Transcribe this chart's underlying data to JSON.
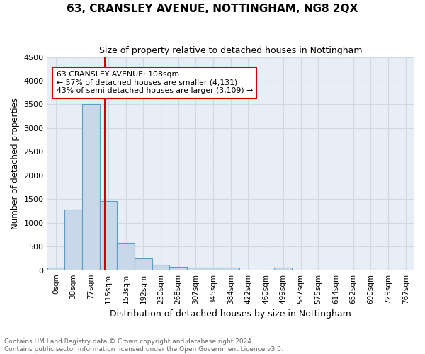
{
  "title": "63, CRANSLEY AVENUE, NOTTINGHAM, NG8 2QX",
  "subtitle": "Size of property relative to detached houses in Nottingham",
  "xlabel": "Distribution of detached houses by size in Nottingham",
  "ylabel": "Number of detached properties",
  "bar_values": [
    50,
    1280,
    3500,
    1460,
    580,
    250,
    120,
    75,
    55,
    50,
    50,
    0,
    0,
    60,
    0,
    0,
    0,
    0,
    0,
    0,
    0
  ],
  "bar_labels": [
    "0sqm",
    "38sqm",
    "77sqm",
    "115sqm",
    "153sqm",
    "192sqm",
    "230sqm",
    "268sqm",
    "307sqm",
    "345sqm",
    "384sqm",
    "422sqm",
    "460sqm",
    "499sqm",
    "537sqm",
    "575sqm",
    "614sqm",
    "652sqm",
    "690sqm",
    "729sqm",
    "767sqm"
  ],
  "bar_color": "#c8d8e8",
  "bar_edge_color": "#5a9ec8",
  "ylim": [
    0,
    4500
  ],
  "yticks": [
    0,
    500,
    1000,
    1500,
    2000,
    2500,
    3000,
    3500,
    4000,
    4500
  ],
  "vline_color": "#cc0000",
  "annotation_text": "63 CRANSLEY AVENUE: 108sqm\n← 57% of detached houses are smaller (4,131)\n43% of semi-detached houses are larger (3,109) →",
  "annotation_box_color": "#ffffff",
  "annotation_box_edge": "#cc0000",
  "grid_color": "#d0d8e8",
  "background_color": "#e8eef5",
  "footer_text": "Contains HM Land Registry data © Crown copyright and database right 2024.\nContains public sector information licensed under the Open Government Licence v3.0.",
  "figsize": [
    6.0,
    5.0
  ],
  "dpi": 100
}
